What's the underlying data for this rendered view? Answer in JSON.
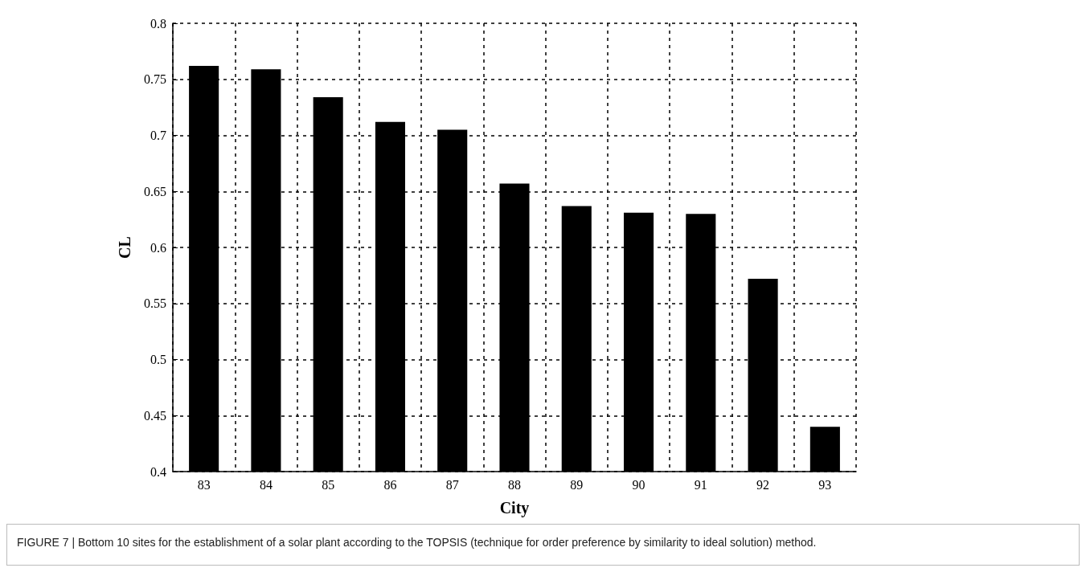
{
  "chart_data": {
    "type": "bar",
    "xlabel": "City",
    "ylabel": "CL",
    "categories": [
      "83",
      "84",
      "85",
      "86",
      "87",
      "88",
      "89",
      "90",
      "91",
      "92",
      "93"
    ],
    "values": [
      0.762,
      0.759,
      0.734,
      0.712,
      0.705,
      0.657,
      0.637,
      0.631,
      0.63,
      0.572,
      0.44
    ],
    "color": "#000000",
    "ylim": [
      0.4,
      0.8
    ],
    "yticks": [
      0.4,
      0.45,
      0.5,
      0.55,
      0.6,
      0.65,
      0.7,
      0.75,
      0.8
    ],
    "grid": true,
    "annotations": [
      "FIGURE 7 | Bottom 10 sites for the establishment of a solar plant according to the TOPSIS (technique for order preference by similarity to ideal solution) method."
    ]
  }
}
